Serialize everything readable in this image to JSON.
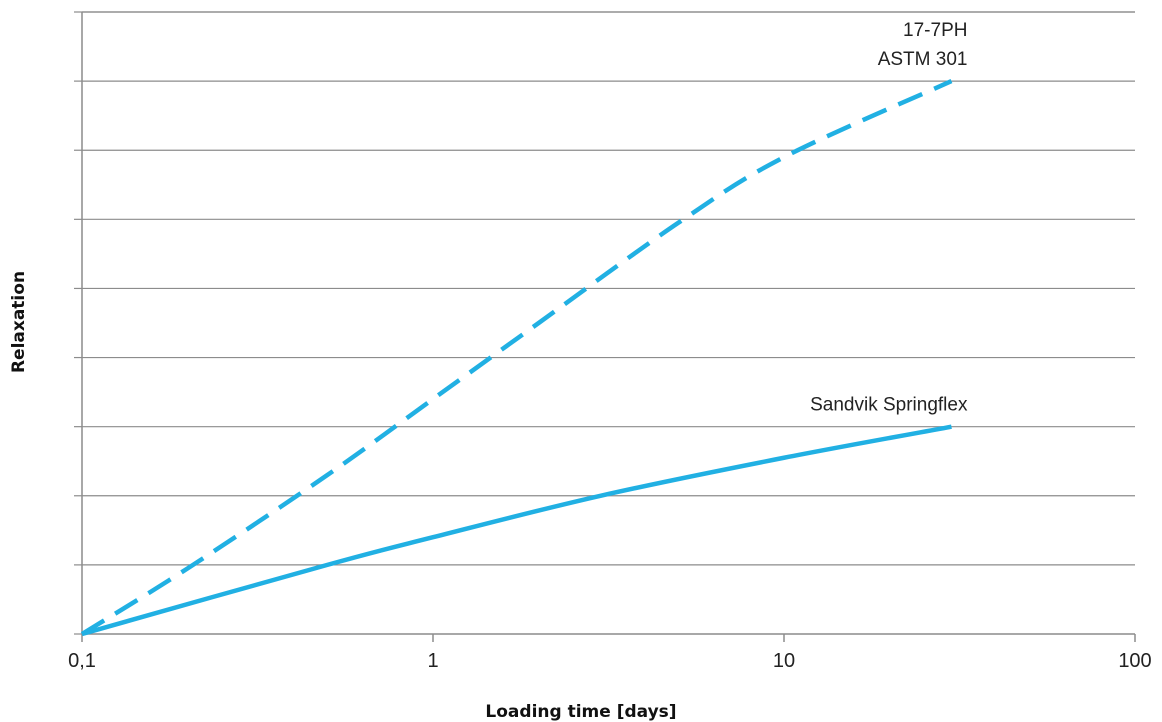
{
  "chart_data": {
    "type": "line",
    "xscale": "log",
    "xlim": [
      0.1,
      100
    ],
    "ylim": [
      0,
      9
    ],
    "grid": true,
    "xticks": [
      "0,1",
      "1",
      "10",
      "100"
    ],
    "xlabel": "Loading time [days]",
    "ylabel": "Relaxation",
    "color": "#21b0e3",
    "series": [
      {
        "name": "17-7PH ASTM 301",
        "label_lines": [
          "17-7PH",
          "ASTM 301"
        ],
        "style": "dashed",
        "x": [
          0.1,
          0.2,
          0.5,
          1,
          2,
          5,
          10,
          30
        ],
        "y": [
          0,
          0.95,
          2.3,
          3.4,
          4.5,
          5.95,
          6.9,
          8.0
        ]
      },
      {
        "name": "Sandvik Springflex",
        "label_lines": [
          "Sandvik Springflex"
        ],
        "style": "solid",
        "x": [
          0.1,
          0.5,
          1,
          3,
          10,
          30
        ],
        "y": [
          0,
          1.0,
          1.4,
          2.0,
          2.55,
          3.0
        ]
      }
    ]
  }
}
